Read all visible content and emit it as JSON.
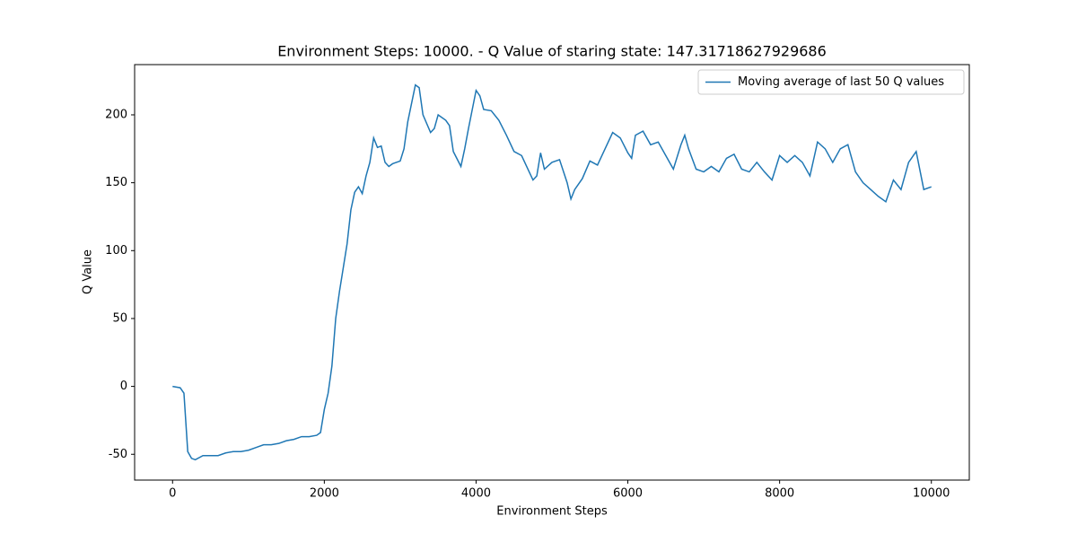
{
  "chart_data": {
    "type": "line",
    "title": "Environment Steps: 10000. - Q Value of staring state: 147.31718627929686",
    "x_label": "Environment Steps",
    "y_label": "Q Value",
    "x": [
      0,
      100,
      150,
      200,
      250,
      300,
      400,
      500,
      600,
      700,
      800,
      900,
      1000,
      1100,
      1200,
      1300,
      1400,
      1500,
      1600,
      1700,
      1800,
      1900,
      1950,
      2000,
      2050,
      2100,
      2150,
      2200,
      2300,
      2350,
      2400,
      2450,
      2500,
      2550,
      2600,
      2650,
      2700,
      2750,
      2800,
      2850,
      2900,
      3000,
      3050,
      3100,
      3200,
      3250,
      3300,
      3400,
      3450,
      3500,
      3600,
      3650,
      3700,
      3800,
      3850,
      3900,
      4000,
      4050,
      4100,
      4200,
      4300,
      4400,
      4500,
      4600,
      4700,
      4750,
      4800,
      4850,
      4900,
      5000,
      5100,
      5200,
      5250,
      5300,
      5400,
      5500,
      5600,
      5700,
      5800,
      5900,
      6000,
      6050,
      6100,
      6200,
      6300,
      6400,
      6500,
      6600,
      6700,
      6750,
      6800,
      6900,
      7000,
      7100,
      7200,
      7300,
      7400,
      7500,
      7600,
      7700,
      7800,
      7900,
      8000,
      8100,
      8200,
      8300,
      8400,
      8500,
      8600,
      8700,
      8800,
      8900,
      9000,
      9100,
      9200,
      9300,
      9400,
      9500,
      9600,
      9700,
      9800,
      9900,
      10000
    ],
    "series": [
      {
        "name": "Moving average of last 50 Q values",
        "color": "#1f77b4",
        "values": [
          0,
          -1,
          -5,
          -48,
          -53,
          -54,
          -51,
          -51,
          -51,
          -49,
          -48,
          -48,
          -47,
          -45,
          -43,
          -43,
          -42,
          -40,
          -39,
          -37,
          -37,
          -36,
          -34,
          -17,
          -5,
          15,
          50,
          70,
          105,
          130,
          143,
          147,
          142,
          155,
          165,
          183,
          176,
          177,
          165,
          162,
          164,
          166,
          175,
          195,
          222,
          220,
          200,
          187,
          190,
          200,
          196,
          192,
          173,
          162,
          175,
          190,
          218,
          214,
          204,
          203,
          196,
          185,
          173,
          170,
          158,
          152,
          155,
          172,
          160,
          165,
          167,
          150,
          138,
          145,
          153,
          166,
          163,
          175,
          187,
          183,
          172,
          168,
          185,
          188,
          178,
          180,
          170,
          160,
          178,
          185,
          175,
          160,
          158,
          162,
          158,
          168,
          171,
          160,
          158,
          165,
          158,
          152,
          170,
          165,
          170,
          165,
          155,
          180,
          175,
          165,
          175,
          178,
          158,
          150,
          145,
          140,
          136,
          152,
          145,
          165,
          173,
          145,
          147
        ]
      }
    ],
    "xlim": [
      -500,
      10500
    ],
    "ylim": [
      -69,
      237
    ],
    "xticks": [
      0,
      2000,
      4000,
      6000,
      8000,
      10000
    ],
    "yticks": [
      -50,
      0,
      50,
      100,
      150,
      200
    ],
    "legend": "upper right"
  }
}
